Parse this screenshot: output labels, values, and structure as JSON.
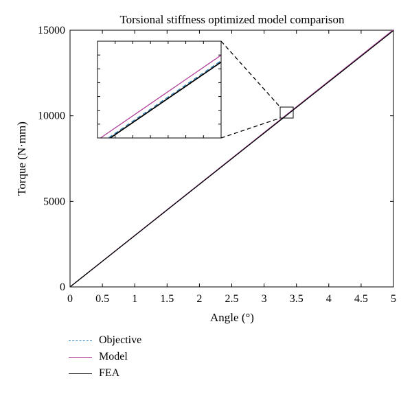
{
  "chart_data": {
    "type": "line",
    "title": "Torsional stiffness optimized model comparison",
    "xlabel": "Angle (°)",
    "ylabel": "Torque (N·mm)",
    "xlim": [
      0,
      5
    ],
    "ylim": [
      0,
      15000
    ],
    "x_ticks": [
      "0",
      "0.5",
      "1",
      "1.5",
      "2",
      "2.5",
      "3",
      "3.5",
      "4",
      "4.5",
      "5"
    ],
    "y_ticks": [
      "0",
      "5000",
      "10000",
      "15000"
    ],
    "grid": false,
    "legend_position": "bottom-left, below plot",
    "series": [
      {
        "name": "Objective",
        "style": "dashed",
        "color": "#2e7fb8",
        "x": [
          0,
          5
        ],
        "y": [
          0,
          14990
        ]
      },
      {
        "name": "Model",
        "style": "solid",
        "color": "#b0409a",
        "x": [
          0,
          5
        ],
        "y": [
          0,
          15030
        ]
      },
      {
        "name": "FEA",
        "style": "solid",
        "color": "#000000",
        "x": [
          0,
          5
        ],
        "y": [
          0,
          14980
        ]
      }
    ],
    "inset": {
      "zoom_xlim": [
        3.28,
        3.42
      ],
      "zoom_ylim": [
        9870,
        10350
      ],
      "ticks_x_count": 7,
      "ticks_y_count": 7
    }
  }
}
